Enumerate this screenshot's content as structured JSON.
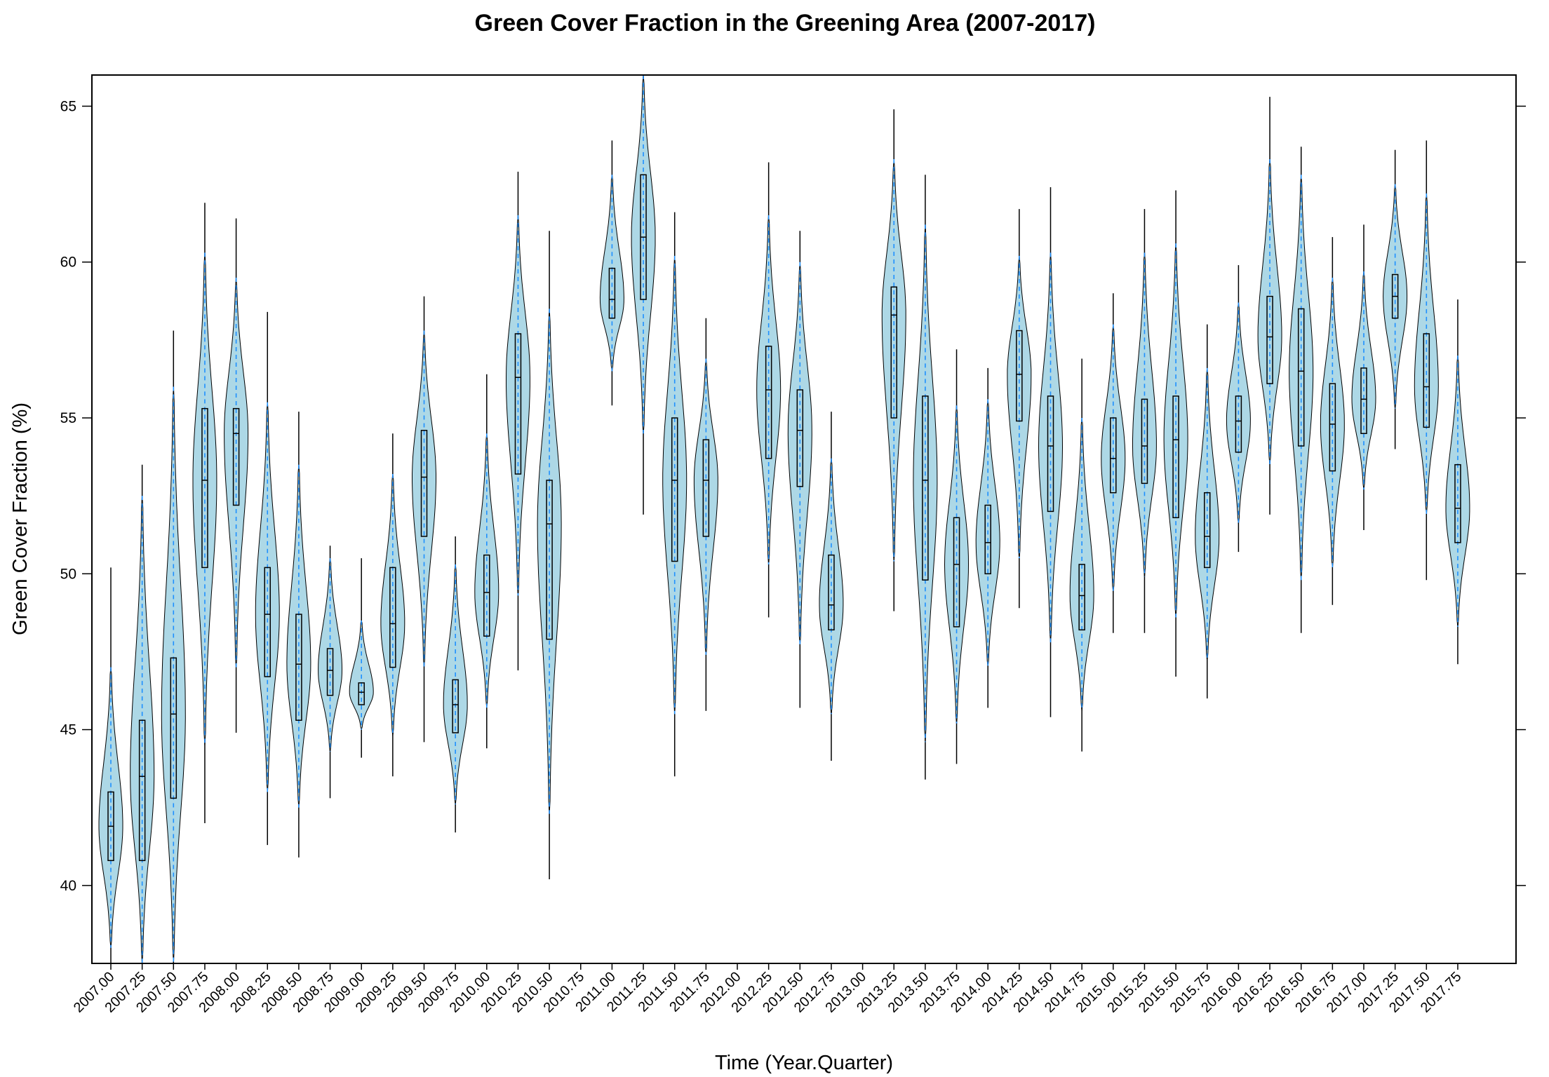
{
  "chart_data": {
    "type": "violin",
    "title": "Green Cover Fraction in the Greening Area (2007-2017)",
    "xlabel": "Time (Year.Quarter)",
    "ylabel": "Green Cover Fraction (%)",
    "ylim": [
      37.5,
      66
    ],
    "yticks": [
      "40",
      "45",
      "50",
      "55",
      "60",
      "65"
    ],
    "grid": false,
    "colors": {
      "fill": "#add8e6",
      "outline": "#000000",
      "mean_line": "#1e90ff",
      "box": "#000000"
    },
    "categories": [
      "2007.00",
      "2007.25",
      "2007.50",
      "2007.75",
      "2008.00",
      "2008.25",
      "2008.50",
      "2008.75",
      "2009.00",
      "2009.25",
      "2009.50",
      "2009.75",
      "2010.00",
      "2010.25",
      "2010.50",
      "2010.75",
      "2011.00",
      "2011.25",
      "2011.50",
      "2011.75",
      "2012.00",
      "2012.25",
      "2012.50",
      "2012.75",
      "2013.00",
      "2013.25",
      "2013.50",
      "2013.75",
      "2014.00",
      "2014.25",
      "2014.50",
      "2014.75",
      "2015.00",
      "2015.25",
      "2015.50",
      "2015.75",
      "2016.00",
      "2016.25",
      "2016.50",
      "2016.75",
      "2017.00",
      "2017.25",
      "2017.50",
      "2017.75"
    ],
    "series": [
      {
        "min": 37.5,
        "q1": 40.8,
        "median": 41.9,
        "q3": 43.0,
        "max": 50.2,
        "vlow": 38.0,
        "vhigh": 47.0
      },
      {
        "min": 37.5,
        "q1": 40.8,
        "median": 43.5,
        "q3": 45.3,
        "max": 53.5,
        "vlow": 37.5,
        "vhigh": 52.5
      },
      {
        "min": 37.5,
        "q1": 42.8,
        "median": 45.5,
        "q3": 47.3,
        "max": 57.8,
        "vlow": 37.5,
        "vhigh": 56.0
      },
      {
        "min": 42.0,
        "q1": 50.2,
        "median": 53.0,
        "q3": 55.3,
        "max": 61.9,
        "vlow": 44.5,
        "vhigh": 60.3
      },
      {
        "min": 44.9,
        "q1": 52.2,
        "median": 54.5,
        "q3": 55.3,
        "max": 61.4,
        "vlow": 47.0,
        "vhigh": 59.5
      },
      {
        "min": 41.3,
        "q1": 46.7,
        "median": 48.7,
        "q3": 50.2,
        "max": 58.4,
        "vlow": 43.0,
        "vhigh": 55.5
      },
      {
        "min": 40.9,
        "q1": 45.3,
        "median": 47.1,
        "q3": 48.7,
        "max": 55.2,
        "vlow": 42.5,
        "vhigh": 53.5
      },
      {
        "min": 42.8,
        "q1": 46.1,
        "median": 46.9,
        "q3": 47.6,
        "max": 50.9,
        "vlow": 44.3,
        "vhigh": 50.5
      },
      {
        "min": 44.1,
        "q1": 45.8,
        "median": 46.2,
        "q3": 46.5,
        "max": 50.5,
        "vlow": 45.0,
        "vhigh": 48.5
      },
      {
        "min": 43.5,
        "q1": 47.0,
        "median": 48.4,
        "q3": 50.2,
        "max": 54.5,
        "vlow": 44.8,
        "vhigh": 53.2
      },
      {
        "min": 44.6,
        "q1": 51.2,
        "median": 53.1,
        "q3": 54.6,
        "max": 58.9,
        "vlow": 47.0,
        "vhigh": 57.8
      },
      {
        "min": 41.7,
        "q1": 44.9,
        "median": 45.8,
        "q3": 46.6,
        "max": 51.2,
        "vlow": 42.6,
        "vhigh": 50.3
      },
      {
        "min": 44.4,
        "q1": 48.0,
        "median": 49.4,
        "q3": 50.6,
        "max": 56.4,
        "vlow": 45.7,
        "vhigh": 54.5
      },
      {
        "min": 46.9,
        "q1": 53.2,
        "median": 56.3,
        "q3": 57.7,
        "max": 62.9,
        "vlow": 49.3,
        "vhigh": 61.5
      },
      {
        "min": 40.2,
        "q1": 47.9,
        "median": 51.6,
        "q3": 53.0,
        "max": 61.0,
        "vlow": 42.3,
        "vhigh": 58.5
      },
      null,
      {
        "min": 55.4,
        "q1": 58.2,
        "median": 58.8,
        "q3": 59.8,
        "max": 63.9,
        "vlow": 56.5,
        "vhigh": 62.8
      },
      {
        "min": 51.9,
        "q1": 58.8,
        "median": 60.8,
        "q3": 62.8,
        "max": 66.0,
        "vlow": 54.5,
        "vhigh": 66.0
      },
      {
        "min": 43.5,
        "q1": 50.4,
        "median": 53.0,
        "q3": 55.0,
        "max": 61.6,
        "vlow": 45.5,
        "vhigh": 60.2
      },
      {
        "min": 45.6,
        "q1": 51.2,
        "median": 53.0,
        "q3": 54.3,
        "max": 58.2,
        "vlow": 47.4,
        "vhigh": 56.9
      },
      null,
      {
        "min": 48.6,
        "q1": 53.7,
        "median": 55.9,
        "q3": 57.3,
        "max": 63.2,
        "vlow": 50.3,
        "vhigh": 61.5
      },
      {
        "min": 45.7,
        "q1": 52.8,
        "median": 54.6,
        "q3": 55.9,
        "max": 61.0,
        "vlow": 47.7,
        "vhigh": 60.0
      },
      {
        "min": 44.0,
        "q1": 48.2,
        "median": 49.0,
        "q3": 50.6,
        "max": 55.2,
        "vlow": 45.5,
        "vhigh": 53.7
      },
      null,
      {
        "min": 48.8,
        "q1": 55.0,
        "median": 58.3,
        "q3": 59.2,
        "max": 64.9,
        "vlow": 50.4,
        "vhigh": 63.3
      },
      {
        "min": 43.4,
        "q1": 49.8,
        "median": 53.0,
        "q3": 55.7,
        "max": 62.8,
        "vlow": 44.6,
        "vhigh": 61.2
      },
      {
        "min": 43.9,
        "q1": 48.3,
        "median": 50.3,
        "q3": 51.8,
        "max": 57.2,
        "vlow": 45.2,
        "vhigh": 55.4
      },
      {
        "min": 45.7,
        "q1": 50.0,
        "median": 51.0,
        "q3": 52.2,
        "max": 56.6,
        "vlow": 47.0,
        "vhigh": 55.6
      },
      {
        "min": 48.9,
        "q1": 54.9,
        "median": 56.4,
        "q3": 57.8,
        "max": 61.7,
        "vlow": 50.5,
        "vhigh": 60.2
      },
      {
        "min": 45.4,
        "q1": 52.0,
        "median": 54.1,
        "q3": 55.7,
        "max": 62.4,
        "vlow": 47.8,
        "vhigh": 60.3
      },
      {
        "min": 44.3,
        "q1": 48.2,
        "median": 49.3,
        "q3": 50.3,
        "max": 56.9,
        "vlow": 45.6,
        "vhigh": 55.0
      },
      {
        "min": 48.1,
        "q1": 52.6,
        "median": 53.7,
        "q3": 55.0,
        "max": 59.0,
        "vlow": 49.4,
        "vhigh": 58.0
      },
      {
        "min": 48.1,
        "q1": 52.9,
        "median": 54.1,
        "q3": 55.6,
        "max": 61.7,
        "vlow": 49.9,
        "vhigh": 60.3
      },
      {
        "min": 46.7,
        "q1": 51.8,
        "median": 54.3,
        "q3": 55.7,
        "max": 62.3,
        "vlow": 48.6,
        "vhigh": 60.6
      },
      {
        "min": 46.0,
        "q1": 50.2,
        "median": 51.2,
        "q3": 52.6,
        "max": 58.0,
        "vlow": 47.2,
        "vhigh": 56.6
      },
      {
        "min": 50.7,
        "q1": 53.9,
        "median": 54.9,
        "q3": 55.7,
        "max": 59.9,
        "vlow": 51.6,
        "vhigh": 58.7
      },
      {
        "min": 51.9,
        "q1": 56.1,
        "median": 57.6,
        "q3": 58.9,
        "max": 65.3,
        "vlow": 53.5,
        "vhigh": 63.3
      },
      {
        "min": 48.1,
        "q1": 54.1,
        "median": 56.5,
        "q3": 58.5,
        "max": 63.7,
        "vlow": 49.8,
        "vhigh": 62.8
      },
      {
        "min": 49.0,
        "q1": 53.3,
        "median": 54.8,
        "q3": 56.1,
        "max": 60.8,
        "vlow": 50.2,
        "vhigh": 59.5
      },
      {
        "min": 51.4,
        "q1": 54.5,
        "median": 55.6,
        "q3": 56.6,
        "max": 61.2,
        "vlow": 52.7,
        "vhigh": 59.7
      },
      {
        "min": 54.0,
        "q1": 58.2,
        "median": 58.9,
        "q3": 59.6,
        "max": 63.6,
        "vlow": 55.3,
        "vhigh": 62.5
      },
      {
        "min": 49.8,
        "q1": 54.7,
        "median": 56.0,
        "q3": 57.7,
        "max": 63.9,
        "vlow": 51.9,
        "vhigh": 62.2
      },
      {
        "min": 47.1,
        "q1": 51.0,
        "median": 52.1,
        "q3": 53.5,
        "max": 58.8,
        "vlow": 48.3,
        "vhigh": 57.0
      }
    ]
  }
}
